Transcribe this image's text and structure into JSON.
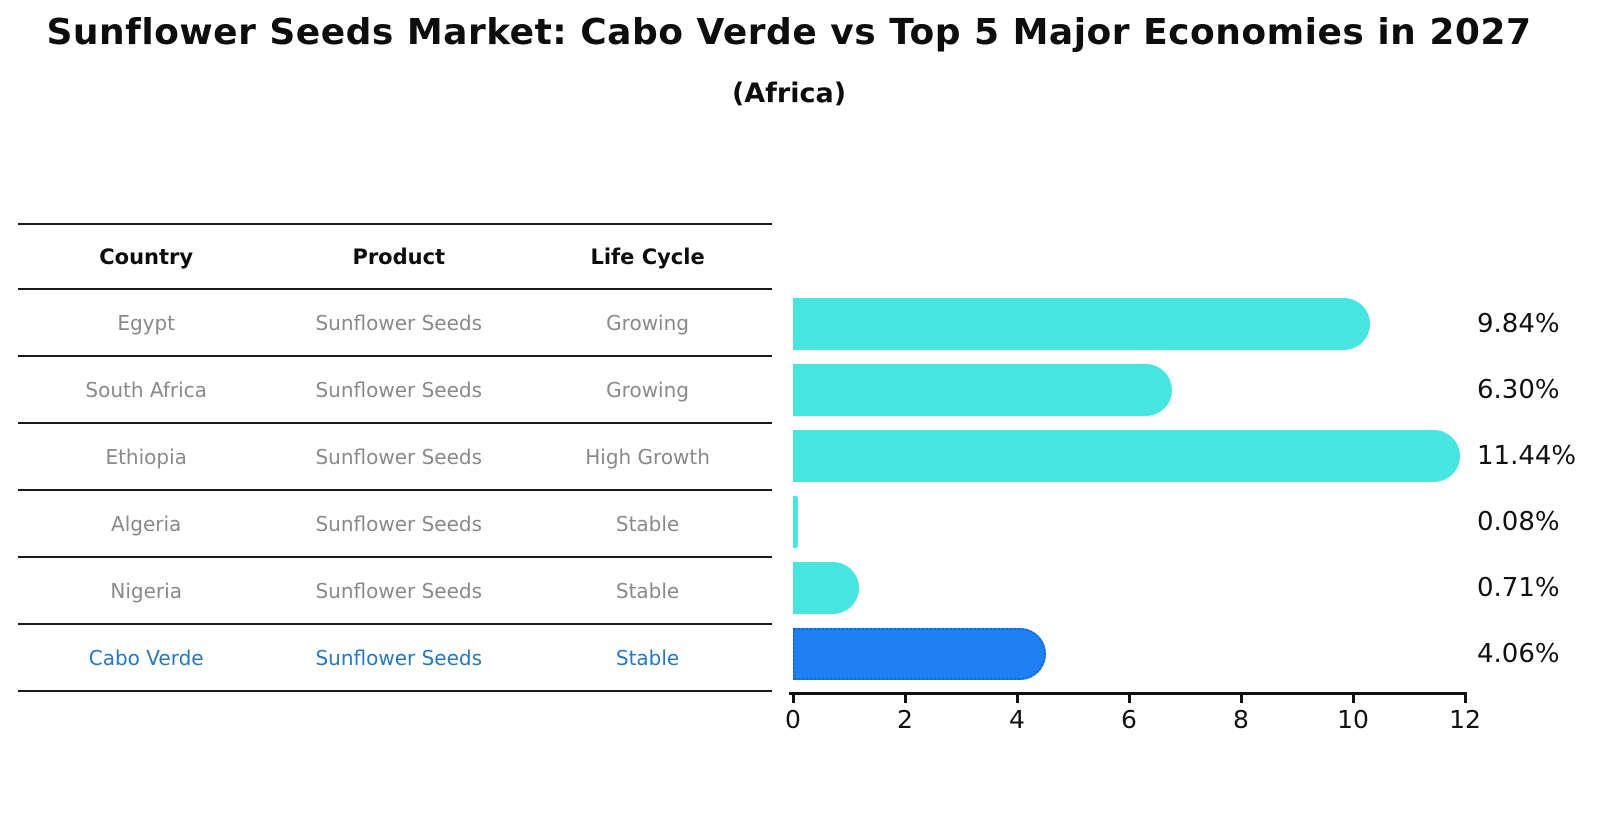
{
  "title": "Sunflower Seeds Market: Cabo Verde vs Top 5 Major Economies in 2027",
  "subtitle": "(Africa)",
  "table": {
    "headers": [
      "Country",
      "Product",
      "Life Cycle"
    ],
    "rows": [
      {
        "country": "Egypt",
        "product": "Sunflower Seeds",
        "life_cycle": "Growing",
        "highlight": false
      },
      {
        "country": "South Africa",
        "product": "Sunflower Seeds",
        "life_cycle": "Growing",
        "highlight": false
      },
      {
        "country": "Ethiopia",
        "product": "Sunflower Seeds",
        "life_cycle": "High Growth",
        "highlight": false
      },
      {
        "country": "Algeria",
        "product": "Sunflower Seeds",
        "life_cycle": "Stable",
        "highlight": false
      },
      {
        "country": "Nigeria",
        "product": "Sunflower Seeds",
        "life_cycle": "Stable",
        "highlight": false
      },
      {
        "country": "Cabo Verde",
        "product": "Sunflower Seeds",
        "life_cycle": "Stable",
        "highlight": true
      }
    ]
  },
  "chart_data": {
    "type": "bar",
    "orientation": "horizontal",
    "title": "Sunflower Seeds Market: Cabo Verde vs Top 5 Major Economies in 2027 (Africa)",
    "categories": [
      "Egypt",
      "South Africa",
      "Ethiopia",
      "Algeria",
      "Nigeria",
      "Cabo Verde"
    ],
    "values": [
      9.84,
      6.3,
      11.44,
      0.08,
      0.71,
      4.06
    ],
    "value_labels": [
      "9.84%",
      "6.30%",
      "11.44%",
      "0.08%",
      "0.71%",
      "4.06%"
    ],
    "xlabel": "",
    "ylabel": "",
    "xlim": [
      0,
      12
    ],
    "x_ticks": [
      0,
      2,
      4,
      6,
      8,
      10,
      12
    ],
    "grid": false,
    "legend": false,
    "highlight_category": "Cabo Verde"
  },
  "colors": {
    "bar_default": "#48E5E0",
    "bar_highlight": "#1E80F2",
    "bar_highlight_border": "#1566D6",
    "row_text": "#8A8A8A",
    "highlight_text": "#2878BE",
    "axis": "#111111"
  }
}
